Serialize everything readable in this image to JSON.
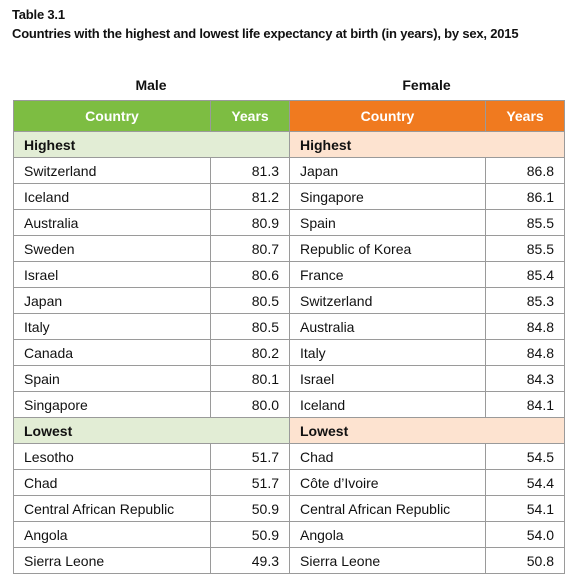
{
  "table_label": "Table 3.1",
  "caption": "Countries with the highest and lowest life expectancy at birth (in years), by sex, 2015",
  "male": {
    "title": "Male",
    "col_country": "Country",
    "col_years": "Years"
  },
  "female": {
    "title": "Female",
    "col_country": "Country",
    "col_years": "Years"
  },
  "colors": {
    "male_header": "#7dbd42",
    "female_header": "#f07a1f",
    "male_section": "#e2edd5",
    "female_section": "#fde3d0"
  },
  "highest_label": "Highest",
  "lowest_label": "Lowest",
  "highest": [
    {
      "male_country": "Switzerland",
      "male_years": "81.3",
      "female_country": "Japan",
      "female_years": "86.8"
    },
    {
      "male_country": "Iceland",
      "male_years": "81.2",
      "female_country": "Singapore",
      "female_years": "86.1"
    },
    {
      "male_country": "Australia",
      "male_years": "80.9",
      "female_country": "Spain",
      "female_years": "85.5"
    },
    {
      "male_country": "Sweden",
      "male_years": "80.7",
      "female_country": "Republic of Korea",
      "female_years": "85.5"
    },
    {
      "male_country": "Israel",
      "male_years": "80.6",
      "female_country": "France",
      "female_years": "85.4"
    },
    {
      "male_country": "Japan",
      "male_years": "80.5",
      "female_country": "Switzerland",
      "female_years": "85.3"
    },
    {
      "male_country": "Italy",
      "male_years": "80.5",
      "female_country": "Australia",
      "female_years": "84.8"
    },
    {
      "male_country": "Canada",
      "male_years": "80.2",
      "female_country": "Italy",
      "female_years": "84.8"
    },
    {
      "male_country": "Spain",
      "male_years": "80.1",
      "female_country": "Israel",
      "female_years": "84.3"
    },
    {
      "male_country": "Singapore",
      "male_years": "80.0",
      "female_country": "Iceland",
      "female_years": "84.1"
    }
  ],
  "lowest": [
    {
      "male_country": "Lesotho",
      "male_years": "51.7",
      "female_country": "Chad",
      "female_years": "54.5"
    },
    {
      "male_country": "Chad",
      "male_years": "51.7",
      "female_country": "Côte d’Ivoire",
      "female_years": "54.4"
    },
    {
      "male_country": "Central African Republic",
      "male_years": "50.9",
      "female_country": "Central African Republic",
      "female_years": "54.1"
    },
    {
      "male_country": "Angola",
      "male_years": "50.9",
      "female_country": "Angola",
      "female_years": "54.0"
    },
    {
      "male_country": "Sierra Leone",
      "male_years": "49.3",
      "female_country": "Sierra Leone",
      "female_years": "50.8"
    }
  ]
}
